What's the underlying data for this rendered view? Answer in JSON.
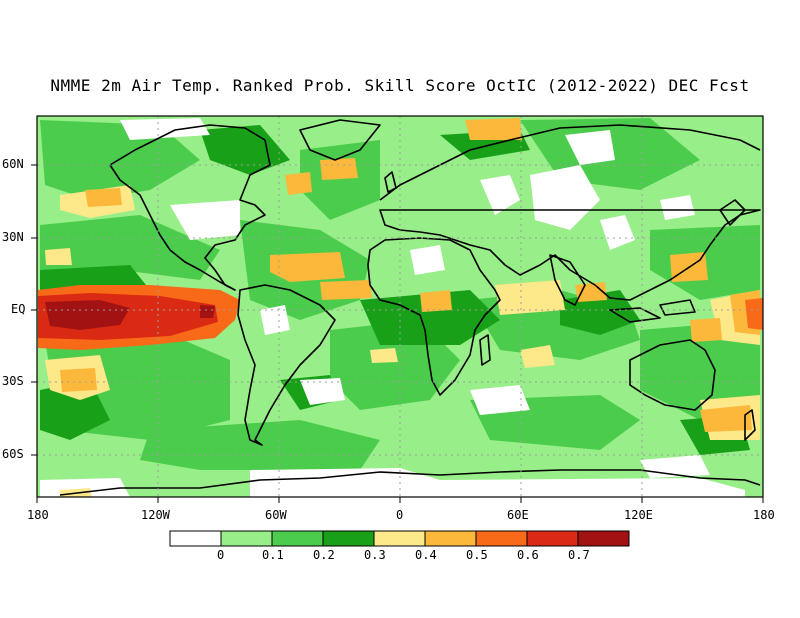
{
  "title": "NMME 2m Air Temp. Ranked Prob. Skill Score OctIC (2012-2022) DEC Fcst",
  "lat_labels": [
    "60N",
    "30N",
    "EQ",
    "30S",
    "60S"
  ],
  "lon_labels": [
    "180",
    "120W",
    "60W",
    "0",
    "60E",
    "120E",
    "180"
  ],
  "colorbar": {
    "labels": [
      "0",
      "0.1",
      "0.2",
      "0.3",
      "0.4",
      "0.5",
      "0.6",
      "0.7"
    ],
    "colors": [
      "#ffffff",
      "#98ee88",
      "#4ccc4c",
      "#18a018",
      "#fde88a",
      "#fcb83a",
      "#f86a18",
      "#da2a14",
      "#a21212"
    ]
  },
  "colors": {
    "land_outline": "#000000",
    "grid": "#9e9e9e"
  }
}
